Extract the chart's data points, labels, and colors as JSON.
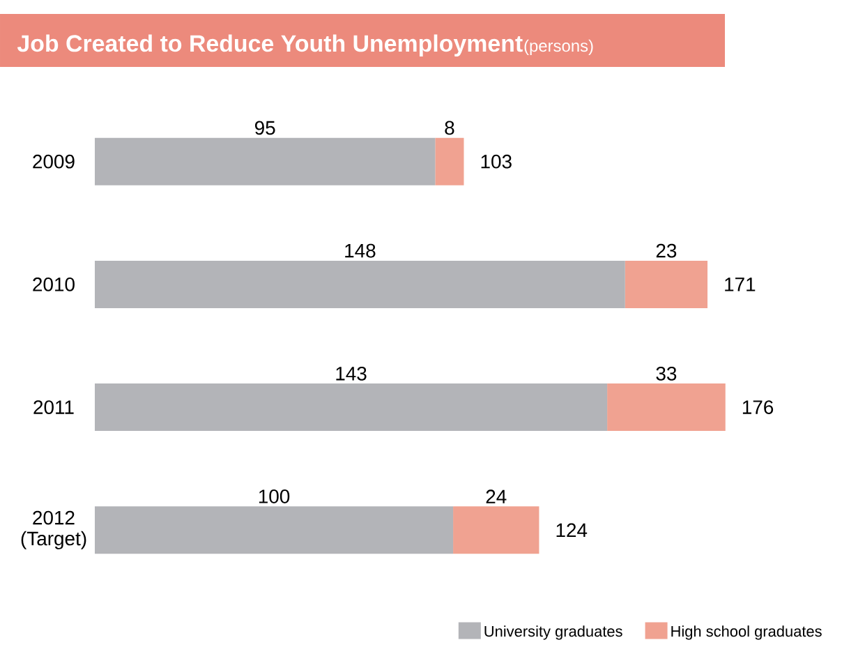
{
  "chart_data": {
    "type": "bar",
    "orientation": "horizontal",
    "stacked": true,
    "title": "Job Created to Reduce Youth Unemployment",
    "subtitle": "(persons)",
    "categories": [
      "2009",
      "2010",
      "2011",
      "2012 (Target)"
    ],
    "series": [
      {
        "name": "University graduates",
        "color": "#b3b4b8",
        "values": [
          95,
          148,
          143,
          100
        ]
      },
      {
        "name": "High school graduates",
        "color": "#f0a291",
        "values": [
          8,
          23,
          33,
          24
        ]
      }
    ],
    "totals": [
      "103",
      "171",
      "176",
      "124"
    ],
    "data_labels": true,
    "tick_labels": "y",
    "legend": "bottom right",
    "grid": false
  }
}
